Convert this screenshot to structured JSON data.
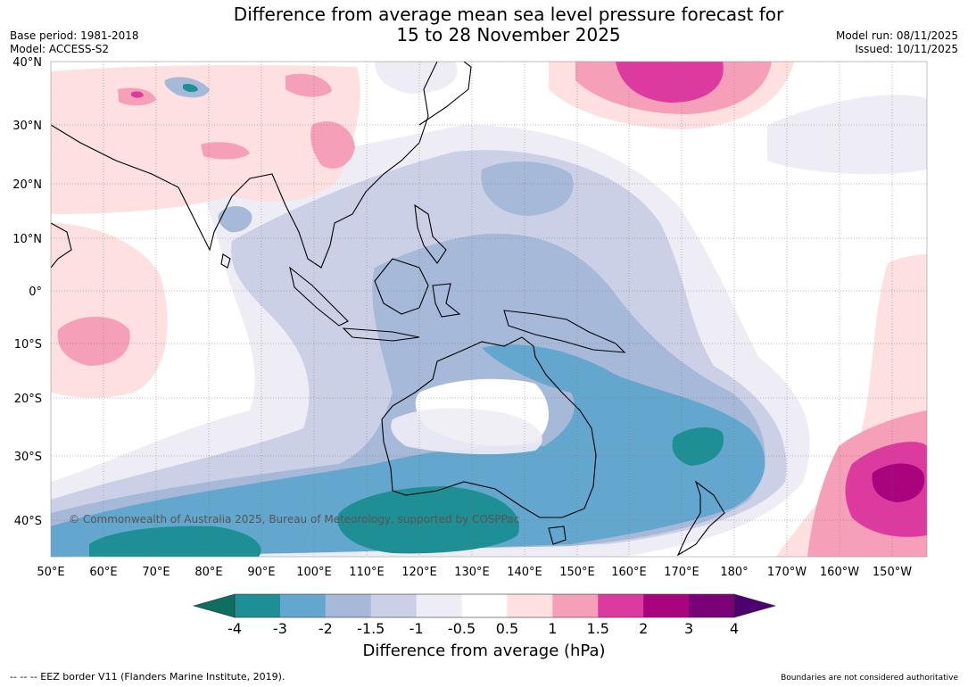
{
  "title": {
    "line1": "Difference from average mean sea level pressure forecast for",
    "line2": "15 to 28 November 2025"
  },
  "meta": {
    "base_period": "Base period: 1981-2018",
    "model": "Model: ACCESS-S2",
    "model_run": "Model run: 08/11/2025",
    "issued": "Issued: 10/11/2025"
  },
  "map": {
    "lat_labels": [
      "40°N",
      "30°N",
      "20°N",
      "10°N",
      "0°",
      "10°S",
      "20°S",
      "30°S",
      "40°S"
    ],
    "lon_labels": [
      "50°E",
      "60°E",
      "70°E",
      "80°E",
      "90°E",
      "100°E",
      "110°E",
      "120°E",
      "130°E",
      "140°E",
      "150°E",
      "160°E",
      "170°E",
      "180°",
      "170°W",
      "160°W",
      "150°W"
    ],
    "copyright": "© Commonwealth of Australia 2025, Bureau of Meteorology, supported by COSPPac"
  },
  "colorbar": {
    "title": "Difference from average (hPa)",
    "tick_labels": [
      "-4",
      "-3",
      "-2",
      "-1.5",
      "-1",
      "-0.5",
      "0.5",
      "1",
      "1.5",
      "2",
      "3",
      "4"
    ],
    "colors": [
      "#1e8f94",
      "#63a7cf",
      "#a7b9d9",
      "#ccd0e6",
      "#eeedf5",
      "#ffffff",
      "#fde0df",
      "#f5a0b8",
      "#dd3a9f",
      "#a9047d",
      "#7a0177"
    ],
    "under_color": "#0f6e62",
    "over_color": "#4d006e"
  },
  "footer": {
    "eez": "--  --  -- EEZ border V11 (Flanders Marine Institute, 2019).",
    "boundaries": "Boundaries are not considered authoritative"
  }
}
